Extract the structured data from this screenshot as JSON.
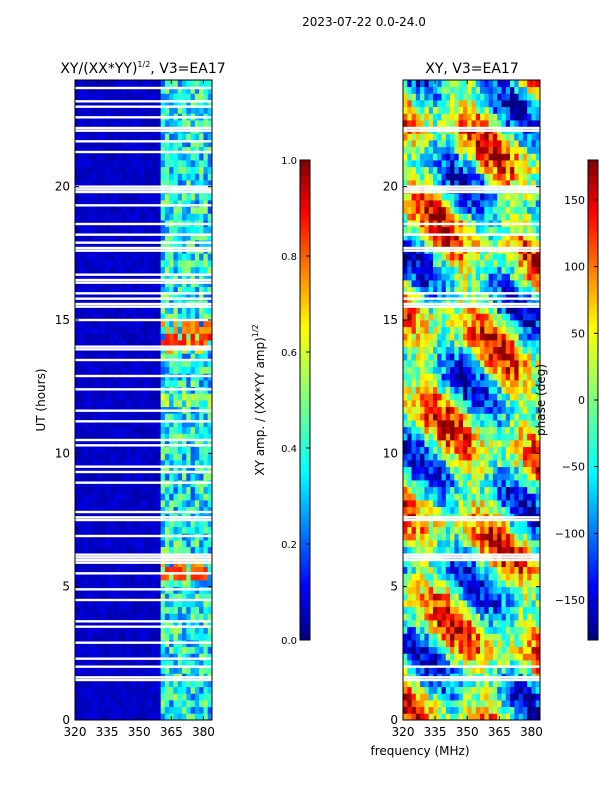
{
  "figure": {
    "suptitle": "2023-07-22 0.0-24.0",
    "xlabel": "frequency (MHz)"
  },
  "chart_data": [
    {
      "type": "heatmap",
      "title_main": "XY/(XX*YY)",
      "title_exp": "1/2",
      "title_suffix": ", V3=EA17",
      "ylabel": "UT (hours)",
      "xlim": [
        320,
        384
      ],
      "ylim": [
        0,
        24
      ],
      "xticks": [
        320,
        335,
        350,
        365,
        380
      ],
      "yticks": [
        0,
        5,
        10,
        15,
        20
      ],
      "active_band_mhz": [
        360,
        384
      ],
      "flagged_rows_hours": [
        1.5,
        1.6,
        2.0,
        2.3,
        2.9,
        3.5,
        3.7,
        4.5,
        4.9,
        5.5,
        5.9,
        6.0,
        6.1,
        6.2,
        6.9,
        7.5,
        7.6,
        7.8,
        8.9,
        9.3,
        9.5,
        10.3,
        10.5,
        11.2,
        11.6,
        12.4,
        12.9,
        13.5,
        13.9,
        14.0,
        15.0,
        15.5,
        15.6,
        15.8,
        16.0,
        16.4,
        16.5,
        16.7,
        17.6,
        17.7,
        17.9,
        18.2,
        18.6,
        19.3,
        19.8,
        19.9,
        20.0,
        21.3,
        21.7,
        22.1,
        22.2,
        22.6,
        23.0,
        23.2,
        23.7
      ],
      "hot_spots": [
        {
          "time_hours": 5.5,
          "level": 0.85
        },
        {
          "time_hours": 5.9,
          "level": 0.8
        },
        {
          "time_hours": 14.3,
          "level": 0.9
        },
        {
          "time_hours": 14.7,
          "level": 0.8
        },
        {
          "time_hours": 13.9,
          "level": 0.75
        },
        {
          "time_hours": 12.0,
          "level": 0.6
        }
      ]
    },
    {
      "type": "heatmap",
      "title": "XY, V3=EA17",
      "xlim": [
        320,
        384
      ],
      "ylim": [
        0,
        24
      ],
      "xticks": [
        320,
        335,
        350,
        365,
        380
      ],
      "yticks": [
        0,
        5,
        10,
        15,
        20
      ],
      "flagged_rows_hours": [
        1.5,
        1.6,
        2.0,
        6.0,
        6.1,
        6.2,
        7.5,
        7.6,
        15.5,
        15.6,
        15.8,
        16.0,
        17.6,
        17.7,
        18.2,
        18.6,
        19.8,
        19.9,
        20.0,
        22.1,
        22.2
      ]
    }
  ],
  "colorbars": [
    {
      "label_main": "XY amp. / (XX*YY amp)",
      "label_exp": "1/2",
      "range": [
        0.0,
        1.0
      ],
      "ticks": [
        "0.0",
        "0.2",
        "0.4",
        "0.6",
        "0.8",
        "1.0"
      ],
      "tick_values": [
        0.0,
        0.2,
        0.4,
        0.6,
        0.8,
        1.0
      ]
    },
    {
      "label": "phase (deg)",
      "range": [
        -180,
        180
      ],
      "ticks": [
        "150",
        "100",
        "50",
        "0",
        "−50",
        "−100",
        "−150"
      ],
      "tick_values": [
        150,
        100,
        50,
        0,
        -50,
        -100,
        -150
      ]
    }
  ],
  "colors": {
    "jet_low": "#00007f",
    "jet_mid": "#7fff7f",
    "jet_high": "#7f0000"
  }
}
